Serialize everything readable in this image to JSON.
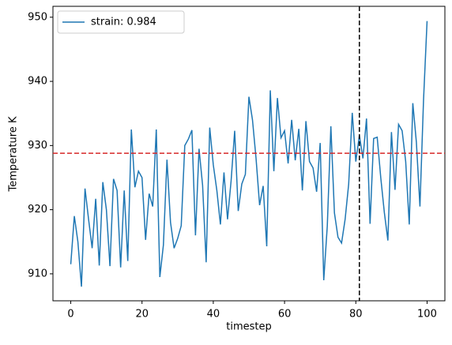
{
  "chart_data": {
    "type": "line",
    "xlabel": "timestep",
    "ylabel": "Temperature K",
    "x": [
      0,
      1,
      2,
      3,
      4,
      5,
      6,
      7,
      8,
      9,
      10,
      11,
      12,
      13,
      14,
      15,
      16,
      17,
      18,
      19,
      20,
      21,
      22,
      23,
      24,
      25,
      26,
      27,
      28,
      29,
      30,
      31,
      32,
      33,
      34,
      35,
      36,
      37,
      38,
      39,
      40,
      41,
      42,
      43,
      44,
      45,
      46,
      47,
      48,
      49,
      50,
      51,
      52,
      53,
      54,
      55,
      56,
      57,
      58,
      59,
      60,
      61,
      62,
      63,
      64,
      65,
      66,
      67,
      68,
      69,
      70,
      71,
      72,
      73,
      74,
      75,
      76,
      77,
      78,
      79,
      80,
      81,
      82,
      83,
      84,
      85,
      86,
      87,
      88,
      89,
      90,
      91,
      92,
      93,
      94,
      95,
      96,
      97,
      98,
      99,
      100
    ],
    "series": [
      {
        "name": "strain: 0.984",
        "color": "#1f77b4",
        "values": [
          911.5,
          919,
          915,
          908,
          923.3,
          918.5,
          914,
          921.7,
          911.3,
          924.3,
          920,
          911.2,
          924.8,
          923,
          911,
          923,
          912,
          932.5,
          923.5,
          926,
          925,
          915.3,
          922.5,
          920.5,
          932.5,
          909.5,
          914.5,
          927.8,
          918,
          914,
          915.5,
          917.5,
          930,
          931,
          932.4,
          916,
          929.5,
          923.8,
          911.8,
          932.8,
          927,
          923,
          917.7,
          925.8,
          918.5,
          924.5,
          932.3,
          919.8,
          924,
          925.5,
          937.6,
          934,
          928,
          920.7,
          923.7,
          914.3,
          938.6,
          926,
          937.4,
          931.2,
          932.3,
          927.2,
          934,
          927.7,
          932.6,
          923,
          933.8,
          927.5,
          926.5,
          922.8,
          930.4,
          909,
          917.5,
          933,
          919.5,
          915.7,
          914.8,
          918.5,
          924,
          935.1,
          927.5,
          931.6,
          928,
          934.2,
          917.8,
          931.1,
          931.3,
          925,
          919.6,
          915.2,
          932.1,
          923.1,
          933.3,
          932.3,
          927.5,
          917.7,
          936.6,
          930.5,
          920.5,
          937,
          949.4
        ]
      }
    ],
    "hline": {
      "value": 928.8,
      "color": "#d62728"
    },
    "vline": {
      "value": 81,
      "color": "#000000"
    },
    "xlim": [
      -5,
      105
    ],
    "xticks": [
      0,
      20,
      40,
      60,
      80,
      100
    ],
    "ylim": [
      905.8,
      951.7
    ],
    "yticks": [
      910,
      920,
      930,
      940,
      950
    ],
    "legend": "upper left"
  }
}
